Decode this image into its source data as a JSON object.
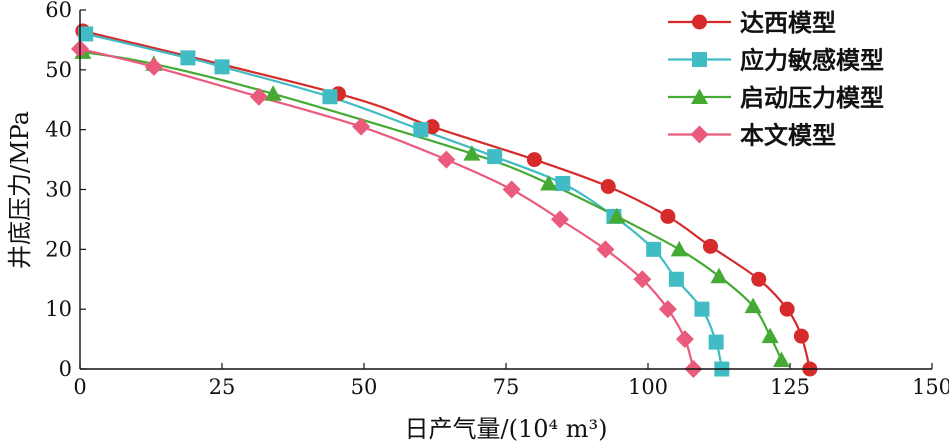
{
  "chart_data": {
    "type": "line",
    "xlabel": "日产气量/(10⁴ m³)",
    "ylabel": "井底压力/MPa",
    "xlim": [
      0,
      150
    ],
    "ylim": [
      0,
      60
    ],
    "xticks": [
      0,
      25,
      50,
      75,
      100,
      125,
      150
    ],
    "yticks": [
      0,
      10,
      20,
      30,
      40,
      50,
      60
    ],
    "grid": false,
    "legend_position": "top-right",
    "series": [
      {
        "name": "达西模型",
        "color": "#d72a2a",
        "marker": "circle",
        "x": [
          0.5,
          45.5,
          62,
          80,
          93,
          103.5,
          111,
          119.5,
          124.5,
          127,
          128.5
        ],
        "y": [
          56.5,
          46,
          40.5,
          35,
          30.5,
          25.5,
          20.5,
          15,
          10,
          5.5,
          0
        ]
      },
      {
        "name": "应力敏感模型",
        "color": "#41bcc4",
        "marker": "square",
        "x": [
          1,
          19,
          25,
          44,
          60,
          73,
          85,
          94,
          101,
          105,
          109.5,
          112,
          113
        ],
        "y": [
          56,
          52,
          50.5,
          45.5,
          40,
          35.5,
          31,
          25.5,
          20,
          15,
          10,
          4.5,
          0
        ]
      },
      {
        "name": "启动压力模型",
        "color": "#44aa33",
        "marker": "triangle",
        "x": [
          0.5,
          13,
          34,
          69,
          82.5,
          94.5,
          105.5,
          112.5,
          118.5,
          121.5,
          123.5
        ],
        "y": [
          53,
          51,
          46,
          36,
          31,
          25.5,
          20,
          15.5,
          10.5,
          5.5,
          1.5
        ]
      },
      {
        "name": "本文模型",
        "color": "#ea5a7c",
        "marker": "diamond",
        "x": [
          0,
          13,
          31.5,
          49.5,
          64.5,
          76,
          84.5,
          92.5,
          99,
          103.5,
          106.5,
          108
        ],
        "y": [
          53.5,
          50.5,
          45.5,
          40.5,
          35,
          30,
          25,
          20,
          15,
          10,
          5,
          0
        ]
      }
    ]
  }
}
